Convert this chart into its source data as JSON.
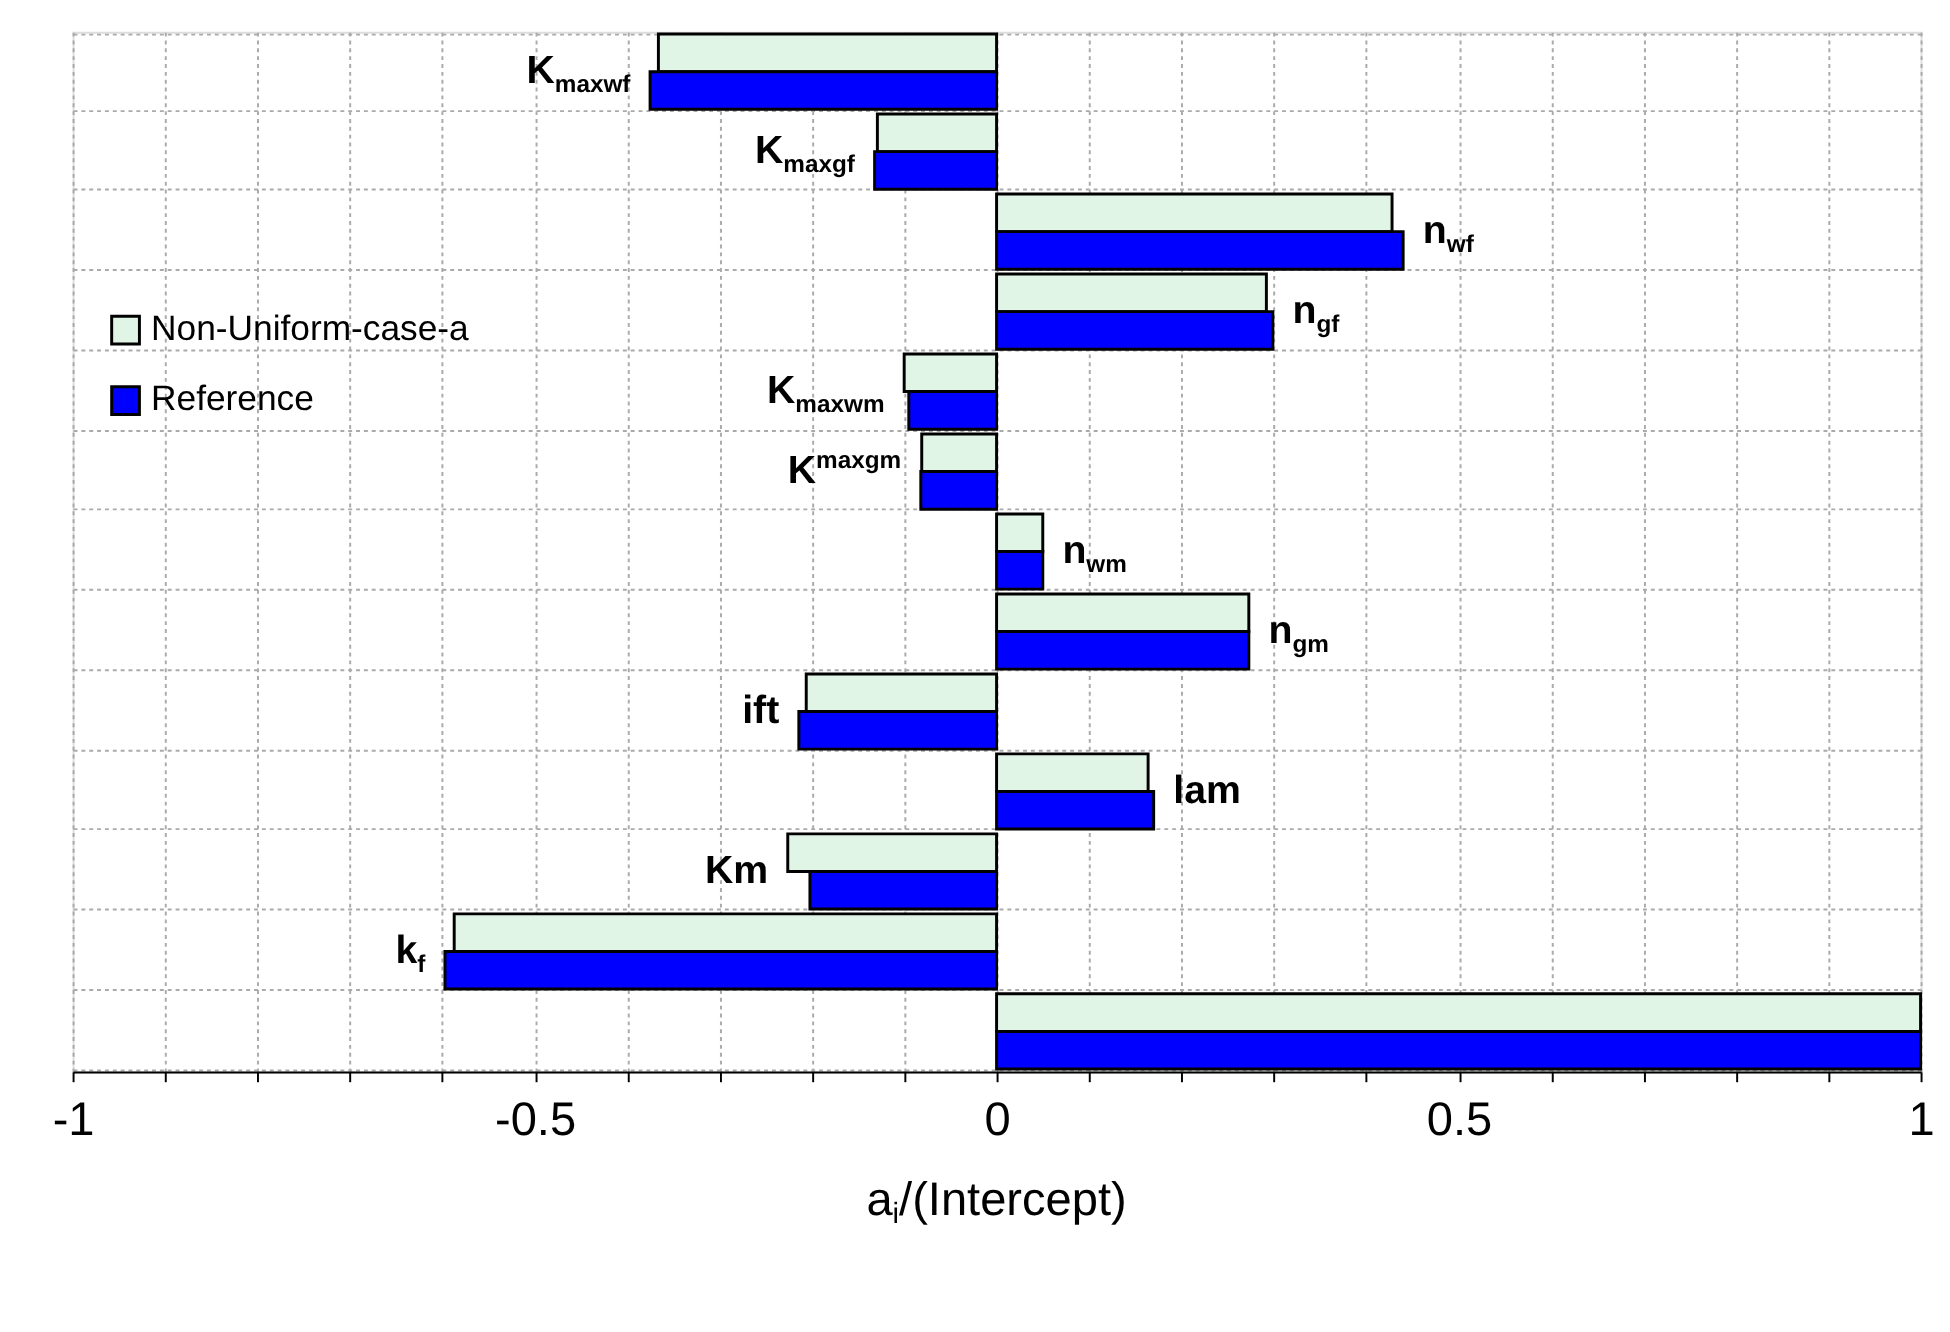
{
  "chart_data": {
    "type": "bar",
    "orientation": "horizontal",
    "xlabel": "a$_{i}$/(Intercept)",
    "categories": [
      "K$_{maxwf}$",
      "K$_{maxgf}$",
      "n$_{wf}$",
      "n$_{gf}$",
      "K$_{maxwm}$",
      "K$^{maxgm}$",
      "n$_{wm}$",
      "n$_{gm}$",
      "ift",
      "lam",
      "Km",
      "k$_{f}$",
      null
    ],
    "series": [
      {
        "name": "Non-Uniform-case-a",
        "color": "#e1f5e7",
        "values": [
          -0.366,
          -0.129,
          0.428,
          0.292,
          -0.1,
          -0.081,
          0.05,
          0.273,
          -0.206,
          0.164,
          -0.226,
          -0.587,
          1
        ]
      },
      {
        "name": "Reference",
        "color": "#0000ff",
        "values": [
          -0.375,
          -0.132,
          0.44,
          0.299,
          -0.095,
          -0.082,
          0.05,
          0.273,
          -0.214,
          0.17,
          -0.202,
          -0.597,
          1
        ]
      }
    ],
    "xlim": [
      -1,
      1
    ],
    "xticks": [
      -1,
      {
        "value": -0.9,
        "label": null
      },
      {
        "value": -0.8,
        "label": null
      },
      {
        "value": -0.7,
        "label": null
      },
      {
        "value": -0.6,
        "label": null
      },
      -0.5,
      {
        "value": -0.4,
        "label": null
      },
      {
        "value": -0.3,
        "label": null
      },
      {
        "value": -0.2,
        "label": null
      },
      {
        "value": -0.1,
        "label": null
      },
      0,
      {
        "value": 0.1,
        "label": null
      },
      {
        "value": 0.2,
        "label": null
      },
      {
        "value": 0.3,
        "label": null
      },
      {
        "value": 0.4,
        "label": null
      },
      0.5,
      {
        "value": 0.6,
        "label": null
      },
      {
        "value": 0.7,
        "label": null
      },
      {
        "value": 0.8,
        "label": null
      },
      {
        "value": 0.9,
        "label": null
      },
      1
    ],
    "grid": true,
    "legend": "left",
    "tick_labels": "x"
  }
}
